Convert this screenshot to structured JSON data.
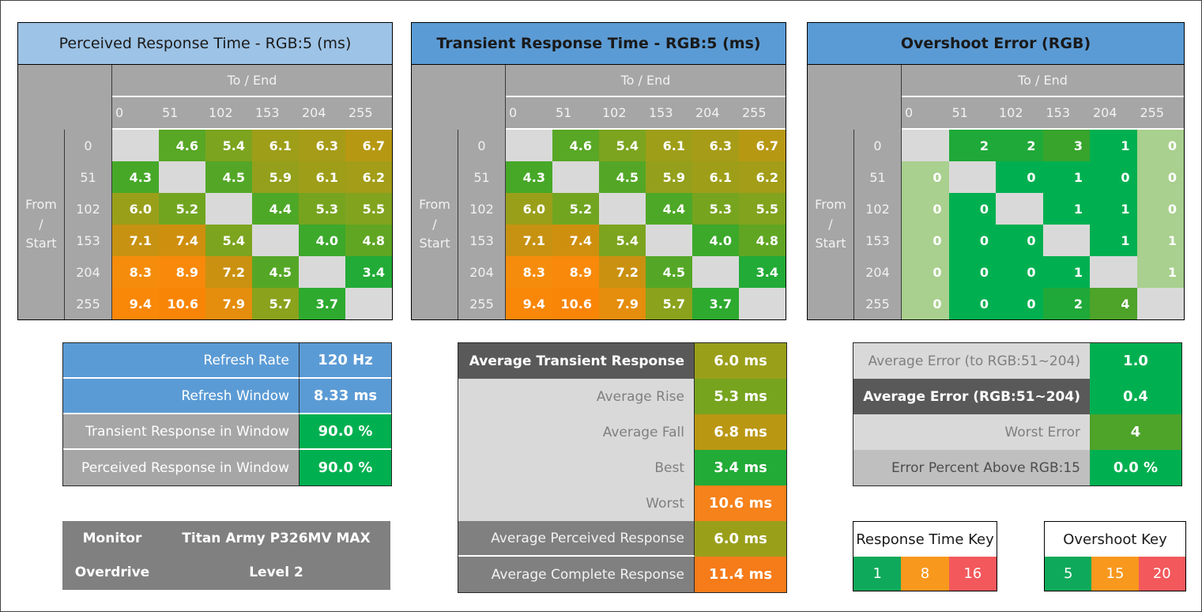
{
  "palette": {
    "page_bg": "#FFFFFF",
    "title_blue_light": "#9DC3E6",
    "title_blue": "#5B9BD5",
    "header_gray": "#A6A6A6",
    "diagonal_gray": "#D9D9D9",
    "green": "#00B050",
    "pale_green": "#A9D08E",
    "key_green": "#0FA95B",
    "key_orange": "#F8981D",
    "key_red": "#F2585C"
  },
  "color_scales": {
    "response": {
      "3.4": "#22AB36",
      "3.7": "#2EAA2F",
      "4.0": "#3CA92B",
      "4.3": "#47A828",
      "4.4": "#4EA827",
      "4.5": "#54A726",
      "4.6": "#58A725",
      "4.8": "#60A622",
      "5.2": "#71A520",
      "5.3": "#77A41F",
      "5.4": "#7CA41E",
      "5.5": "#81A31D",
      "5.7": "#8AA21C",
      "5.9": "#94A01B",
      "6.0": "#9A9F1A",
      "6.1": "#9E9E19",
      "6.2": "#A39D18",
      "6.3": "#A79C17",
      "6.7": "#B79813",
      "6.8": "#BA9713",
      "7.1": "#C79211",
      "7.2": "#CA9110",
      "7.4": "#CF8F0E",
      "7.9": "#E58D0C",
      "8.3": "#F68C0B",
      "8.9": "#F8890A",
      "9.4": "#F98708",
      "10.6": "#F98506"
    },
    "overshoot": {
      "0": "#00B050",
      "1": "#00B050",
      "2": "#1FA938",
      "3": "#38A42C",
      "4": "#4EA329",
      "edge": "#A9D08E"
    }
  },
  "chart_data": [
    {
      "id": "perceived_response",
      "type": "heatmap",
      "title": "Perceived Response Time - RGB:5 (ms)",
      "title_bg": "#9DC3E6",
      "title_bold": false,
      "col_group_label": "To / End",
      "row_group_label_lines": [
        "From",
        "/",
        "Start"
      ],
      "categories": [
        "0",
        "51",
        "102",
        "153",
        "204",
        "255"
      ],
      "row_labels": [
        "0",
        "51",
        "102",
        "153",
        "204",
        "255"
      ],
      "values": [
        [
          null,
          4.6,
          5.4,
          6.1,
          6.3,
          6.7
        ],
        [
          4.3,
          null,
          4.5,
          5.9,
          6.1,
          6.2
        ],
        [
          6.0,
          5.2,
          null,
          4.4,
          5.3,
          5.5
        ],
        [
          7.1,
          7.4,
          5.4,
          null,
          4.0,
          4.8
        ],
        [
          8.3,
          8.9,
          7.2,
          4.5,
          null,
          3.4
        ],
        [
          9.4,
          10.6,
          7.9,
          5.7,
          3.7,
          null
        ]
      ],
      "scale": "response",
      "decimals": 1,
      "edge_cols": []
    },
    {
      "id": "transient_response",
      "type": "heatmap",
      "title": "Transient Response Time - RGB:5 (ms)",
      "title_bg": "#5B9BD5",
      "title_bold": true,
      "col_group_label": "To / End",
      "row_group_label_lines": [
        "From",
        "/",
        "Start"
      ],
      "categories": [
        "0",
        "51",
        "102",
        "153",
        "204",
        "255"
      ],
      "row_labels": [
        "0",
        "51",
        "102",
        "153",
        "204",
        "255"
      ],
      "values": [
        [
          null,
          4.6,
          5.4,
          6.1,
          6.3,
          6.7
        ],
        [
          4.3,
          null,
          4.5,
          5.9,
          6.1,
          6.2
        ],
        [
          6.0,
          5.2,
          null,
          4.4,
          5.3,
          5.5
        ],
        [
          7.1,
          7.4,
          5.4,
          null,
          4.0,
          4.8
        ],
        [
          8.3,
          8.9,
          7.2,
          4.5,
          null,
          3.4
        ],
        [
          9.4,
          10.6,
          7.9,
          5.7,
          3.7,
          null
        ]
      ],
      "scale": "response",
      "decimals": 1,
      "edge_cols": []
    },
    {
      "id": "overshoot_error",
      "type": "heatmap",
      "title": "Overshoot Error (RGB)",
      "title_bg": "#5B9BD5",
      "title_bold": true,
      "col_group_label": "To / End",
      "row_group_label_lines": [
        "From",
        "/",
        "Start"
      ],
      "categories": [
        "0",
        "51",
        "102",
        "153",
        "204",
        "255"
      ],
      "row_labels": [
        "0",
        "51",
        "102",
        "153",
        "204",
        "255"
      ],
      "values": [
        [
          null,
          2,
          2,
          3,
          1,
          0
        ],
        [
          0,
          null,
          0,
          1,
          0,
          0
        ],
        [
          0,
          0,
          null,
          1,
          1,
          0
        ],
        [
          0,
          0,
          0,
          null,
          1,
          1
        ],
        [
          0,
          0,
          0,
          1,
          null,
          1
        ],
        [
          0,
          0,
          0,
          2,
          4,
          null
        ]
      ],
      "scale": "overshoot",
      "decimals": 0,
      "edge_cols": [
        0,
        5
      ]
    },
    {
      "id": "settings_summary",
      "type": "table",
      "divider": true,
      "row_separators": true,
      "rows": [
        {
          "label": "Refresh Rate",
          "value": "120 Hz",
          "label_style": "blue",
          "value_bg": "#5B9BD5"
        },
        {
          "label": "Refresh Window",
          "value": "8.33 ms",
          "label_style": "blue",
          "value_bg": "#5B9BD5"
        },
        {
          "label": "Transient Response in Window",
          "value": "90.0 %",
          "label_style": "gray",
          "value_bg": "#00B050"
        },
        {
          "label": "Perceived Response in Window",
          "value": "90.0 %",
          "label_style": "gray",
          "value_bg": "#00B050"
        }
      ]
    },
    {
      "id": "monitor_info",
      "type": "info",
      "rows": [
        {
          "label": "Monitor",
          "value": "Titan Army P326MV MAX"
        },
        {
          "label": "Overdrive",
          "value": "Level 2"
        }
      ]
    },
    {
      "id": "transient_summary",
      "type": "table",
      "divider": true,
      "row_separators": false,
      "rows": [
        {
          "label": "Average Transient Response",
          "value": "6.0 ms",
          "label_style": "dark",
          "value_bg": "#9A9F1A"
        },
        {
          "label": "Average Rise",
          "value": "5.3 ms",
          "label_style": "light",
          "value_bg": "#77A41F"
        },
        {
          "label": "Average Fall",
          "value": "6.8 ms",
          "label_style": "light",
          "value_bg": "#BA9713"
        },
        {
          "label": "Best",
          "value": "3.4 ms",
          "label_style": "light",
          "value_bg": "#22AB36"
        },
        {
          "label": "Worst",
          "value": "10.6 ms",
          "label_style": "light",
          "value_bg": "#F6821B"
        },
        {
          "label": "Average Perceived Response",
          "value": "6.0 ms",
          "label_style": "medium",
          "value_bg": "#9A9F1A",
          "label_sep": true
        },
        {
          "label": "Average Complete Response",
          "value": "11.4 ms",
          "label_style": "medium",
          "value_bg": "#F67B19"
        }
      ]
    },
    {
      "id": "overshoot_summary",
      "type": "table",
      "divider": false,
      "row_separators": false,
      "rows": [
        {
          "label": "Average Error (to RGB:51~204)",
          "value": "1.0",
          "label_style": "light",
          "value_bg": "#00B050"
        },
        {
          "label": "Average Error (RGB:51~204)",
          "value": "0.4",
          "label_style": "dark",
          "value_bg": "#00B050"
        },
        {
          "label": "Worst Error",
          "value": "4",
          "label_style": "light",
          "value_bg": "#4EA329"
        },
        {
          "label": "Error Percent Above RGB:15",
          "value": "0.0 %",
          "label_style": "light2",
          "value_bg": "#00B050"
        }
      ]
    },
    {
      "id": "response_time_key",
      "type": "legend",
      "title": "Response Time Key",
      "swatches": [
        {
          "label": "1",
          "color": "#0FA95B"
        },
        {
          "label": "8",
          "color": "#F8981D"
        },
        {
          "label": "16",
          "color": "#F2585C"
        }
      ]
    },
    {
      "id": "overshoot_key",
      "type": "legend",
      "title": "Overshoot Key",
      "swatches": [
        {
          "label": "5",
          "color": "#0FA95B"
        },
        {
          "label": "15",
          "color": "#F8981D"
        },
        {
          "label": "20",
          "color": "#F2585C"
        }
      ]
    }
  ]
}
